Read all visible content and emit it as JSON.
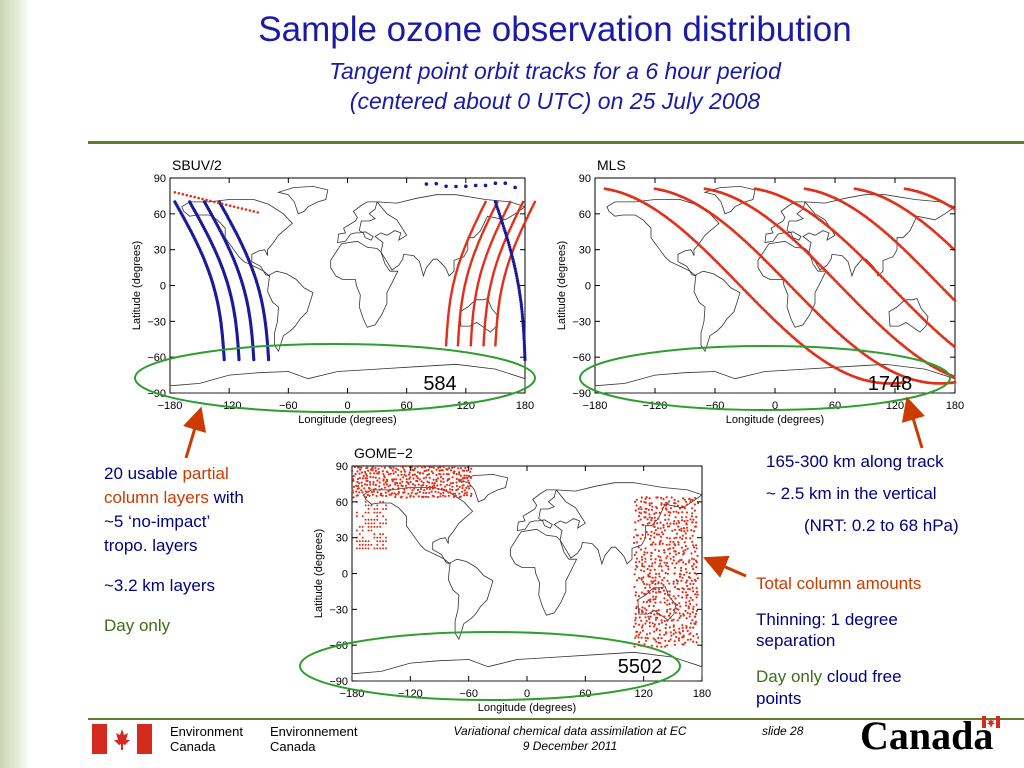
{
  "title": "Sample ozone observation distribution",
  "subtitle_line1": "Tangent point orbit tracks for a 6 hour period",
  "subtitle_line2": "(centered about 0 UTC) on 25 July 2008",
  "colors": {
    "title": "#1a1aa8",
    "accent_green": "#5e7d2e",
    "track_red": "#e0301a",
    "track_blue": "#1a1a9c",
    "ellipse_green": "#2e9e2e",
    "arrow": "#cc3a00"
  },
  "panels": [
    {
      "label": "SBUV/2",
      "count": "584",
      "ylabel": "Latitude (degrees)",
      "xlabel": "Longitude (degrees)",
      "yticks": [
        "90",
        "60",
        "30",
        "0",
        "−30",
        "−60",
        "−90"
      ],
      "xticks": [
        "−180",
        "−120",
        "−60",
        "0",
        "60",
        "120",
        "180"
      ]
    },
    {
      "label": "MLS",
      "count": "1748",
      "ylabel": "Latitude (degrees)",
      "xlabel": "Longitude (degrees)",
      "yticks": [
        "90",
        "60",
        "30",
        "0",
        "−30",
        "−60",
        "−90"
      ],
      "xticks": [
        "−180",
        "−120",
        "−60",
        "0",
        "60",
        "120",
        "180"
      ]
    },
    {
      "label": "GOME−2",
      "count": "5502",
      "ylabel": "Latitude (degrees)",
      "xlabel": "Longitude (degrees)",
      "yticks": [
        "90",
        "60",
        "30",
        "0",
        "−30",
        "−60",
        "−90"
      ],
      "xticks": [
        "−180",
        "−120",
        "−60",
        "0",
        "60",
        "120",
        "180"
      ]
    }
  ],
  "notes_left": {
    "line1_a": "20 usable ",
    "line1_b": "partial",
    "line2_a": "column layers",
    "line2_b": " with",
    "line3": "~5 ‘no-impact’",
    "line4": "tropo. layers",
    "line5": "~3.2 km layers",
    "line6": "Day only"
  },
  "notes_right_top": {
    "line1": "165-300 km along track",
    "line2": "~ 2.5 km in the vertical",
    "line3": "(NRT: 0.2 to 68 hPa)"
  },
  "notes_right_bottom": {
    "line1": "Total column amounts",
    "line2": "Thinning: 1 degree",
    "line3": "separation",
    "line4_a": "Day only",
    "line4_b": " cloud free",
    "line5": "points"
  },
  "footer": {
    "env_en_1": "Environment",
    "env_en_2": "Canada",
    "env_fr_1": "Environnement",
    "env_fr_2": "Canada",
    "center_1": "Variational chemical data assimilation at EC",
    "center_2": "9 December 2011",
    "slide_label": "slide  28",
    "canada_wordmark": "Canada"
  }
}
